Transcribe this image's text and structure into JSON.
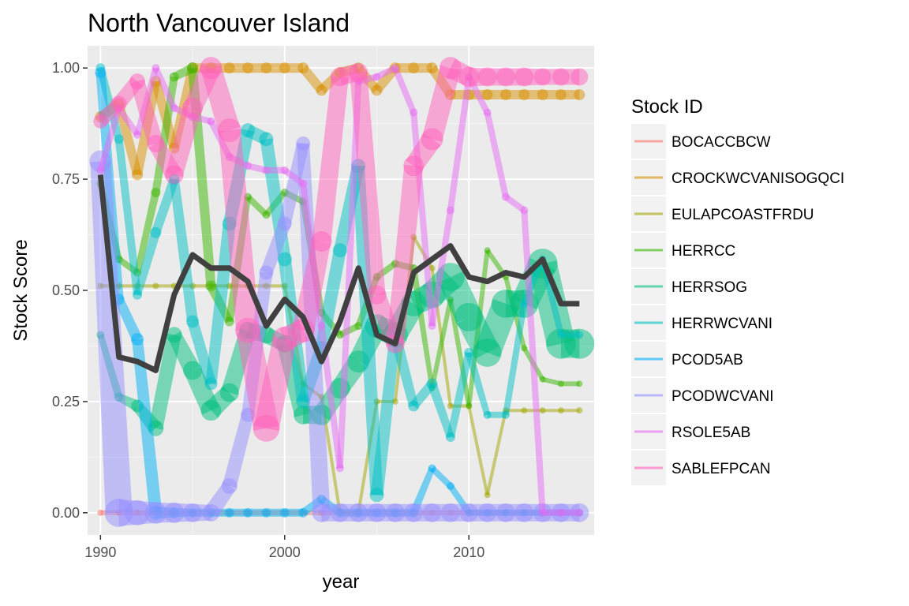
{
  "chart_data": {
    "type": "line",
    "title": "North Vancouver Island",
    "xlabel": "year",
    "ylabel": "Stock Score",
    "xlim": [
      1989.3,
      2016.8
    ],
    "ylim": [
      -0.05,
      1.05
    ],
    "x_ticks": [
      1990,
      2000,
      2010
    ],
    "x_tick_labels": [
      "1990",
      "2000",
      "2010"
    ],
    "y_ticks": [
      0,
      0.25,
      0.5,
      0.75,
      1.0
    ],
    "y_tick_labels": [
      "0.00",
      "0.25",
      "0.50",
      "0.75",
      "1.00"
    ],
    "grid": true,
    "legend_title": "Stock ID",
    "legend_position": "right",
    "series": [
      {
        "name": "BOCACCBCW",
        "color": "#F8766D",
        "thin": false,
        "x": [
          1990,
          1991,
          1992,
          1993,
          1994,
          1995,
          1996,
          1997,
          1998,
          1999,
          2000,
          2001,
          2002,
          2003,
          2004,
          2005,
          2006,
          2007,
          2008,
          2009,
          2010,
          2011,
          2012,
          2013,
          2014,
          2015,
          2016
        ],
        "y": [
          0,
          0,
          0,
          0,
          0,
          0,
          0,
          0,
          0,
          0,
          0,
          0,
          0,
          0,
          0,
          0,
          0,
          0,
          0,
          0,
          0,
          0,
          0,
          0,
          0,
          0,
          0
        ],
        "w": [
          6,
          6,
          6,
          6,
          6,
          6,
          6,
          6,
          6,
          6,
          6,
          6,
          6,
          6,
          6,
          6,
          6,
          6,
          6,
          6,
          6,
          6,
          6,
          6,
          6,
          6,
          6
        ]
      },
      {
        "name": "CROCKWCVANISOGQCI",
        "color": "#D89000",
        "thin": false,
        "x": [
          1990,
          1991,
          1992,
          1993,
          1994,
          1995,
          1996,
          1997,
          1998,
          1999,
          2000,
          2001,
          2002,
          2003,
          2004,
          2005,
          2006,
          2007,
          2008,
          2009,
          2010,
          2011,
          2012,
          2013,
          2014,
          2015,
          2016
        ],
        "y": [
          0.89,
          0.92,
          0.76,
          0.97,
          0.82,
          1.0,
          1.0,
          1.0,
          1.0,
          1.0,
          1.0,
          1.0,
          0.95,
          0.99,
          1.0,
          0.95,
          1.0,
          1.0,
          1.0,
          0.94,
          0.94,
          0.94,
          0.94,
          0.94,
          0.94,
          0.94,
          0.94
        ],
        "w": [
          12,
          12,
          12,
          12,
          12,
          12,
          12,
          12,
          12,
          12,
          12,
          12,
          12,
          12,
          12,
          12,
          12,
          12,
          12,
          12,
          12,
          12,
          12,
          12,
          12,
          12,
          12
        ]
      },
      {
        "name": "EULAPCOASTFRDU",
        "color": "#A3A500",
        "thin": true,
        "x": [
          1990,
          1991,
          1992,
          1993,
          1994,
          1995,
          1996,
          1997,
          1998,
          1999,
          2000,
          2001,
          2002,
          2003,
          2004,
          2005,
          2006,
          2007,
          2008,
          2009,
          2010,
          2011,
          2012,
          2013,
          2014,
          2015,
          2016
        ],
        "y": [
          0.51,
          0.51,
          0.51,
          0.51,
          0.51,
          0.51,
          0.51,
          0.51,
          0.51,
          0.51,
          0.51,
          0.29,
          0.26,
          0.0,
          0.0,
          0.25,
          0.25,
          0.62,
          0.55,
          0.24,
          0.24,
          0.04,
          0.23,
          0.23,
          0.23,
          0.23,
          0.23
        ],
        "w": [
          4,
          4,
          4,
          4,
          4,
          4,
          4,
          4,
          4,
          4,
          4,
          4,
          4,
          4,
          4,
          4,
          4,
          4,
          4,
          4,
          4,
          4,
          4,
          4,
          4,
          4,
          4
        ]
      },
      {
        "name": "HERRCC",
        "color": "#39B600",
        "thin": false,
        "x": [
          1990,
          1991,
          1992,
          1993,
          1994,
          1995,
          1996,
          1997,
          1998,
          1999,
          2000,
          2001,
          2002,
          2003,
          2004,
          2005,
          2006,
          2007,
          2008,
          2009,
          2010,
          2011,
          2012,
          2013,
          2014,
          2015,
          2016
        ],
        "y": [
          0.74,
          0.57,
          0.54,
          0.72,
          0.98,
          1.0,
          0.51,
          0.43,
          0.71,
          0.67,
          0.72,
          0.7,
          0.45,
          0.4,
          0.42,
          0.53,
          0.56,
          0.55,
          0.28,
          0.48,
          0.24,
          0.59,
          0.53,
          0.37,
          0.3,
          0.29,
          0.29
        ],
        "w": [
          8,
          8,
          8,
          10,
          10,
          12,
          12,
          10,
          8,
          8,
          8,
          8,
          8,
          8,
          8,
          8,
          8,
          8,
          6,
          6,
          6,
          6,
          6,
          6,
          6,
          6,
          6
        ]
      },
      {
        "name": "HERRSOG",
        "color": "#00BF7D",
        "thin": false,
        "x": [
          1990,
          1991,
          1992,
          1993,
          1994,
          1995,
          1996,
          1997,
          1998,
          1999,
          2000,
          2001,
          2002,
          2003,
          2004,
          2005,
          2006,
          2007,
          2008,
          2009,
          2010,
          2011,
          2012,
          2013,
          2014,
          2015,
          2016
        ],
        "y": [
          0.4,
          0.26,
          0.24,
          0.19,
          0.4,
          0.32,
          0.23,
          0.27,
          0.41,
          0.4,
          0.38,
          0.22,
          0.22,
          0.28,
          0.34,
          0.42,
          0.4,
          0.47,
          0.49,
          0.53,
          0.44,
          0.36,
          0.47,
          0.47,
          0.56,
          0.38,
          0.38
        ],
        "w": [
          8,
          10,
          14,
          18,
          18,
          22,
          24,
          22,
          20,
          20,
          20,
          22,
          24,
          24,
          26,
          28,
          30,
          30,
          32,
          34,
          34,
          34,
          34,
          34,
          36,
          36,
          36
        ]
      },
      {
        "name": "HERRWCVANI",
        "color": "#00BFC4",
        "thin": false,
        "x": [
          1990,
          1991,
          1992,
          1993,
          1994,
          1995,
          1996,
          1997,
          1998,
          1999,
          2000,
          2001,
          2002,
          2003,
          2004,
          2005,
          2006,
          2007,
          2008,
          2009,
          2010,
          2011,
          2012,
          2013,
          2014,
          2015,
          2016
        ],
        "y": [
          1.0,
          0.84,
          0.49,
          0.63,
          0.75,
          0.43,
          0.29,
          0.65,
          0.86,
          0.84,
          0.57,
          0.25,
          0.37,
          0.59,
          0.78,
          0.04,
          0.4,
          0.24,
          0.29,
          0.17,
          0.36,
          0.22,
          0.22,
          0.47,
          0.57,
          0.4,
          0.4
        ],
        "w": [
          10,
          10,
          10,
          12,
          12,
          14,
          14,
          16,
          16,
          16,
          16,
          16,
          16,
          16,
          16,
          16,
          14,
          12,
          12,
          10,
          10,
          8,
          8,
          8,
          8,
          8,
          8
        ]
      },
      {
        "name": "PCOD5AB",
        "color": "#00B0F6",
        "thin": false,
        "x": [
          1990,
          1991,
          1992,
          1993,
          1994,
          1995,
          1996,
          1997,
          1998,
          1999,
          2000,
          2001,
          2002,
          2003,
          2004,
          2005,
          2006,
          2007,
          2008,
          2009,
          2010,
          2011,
          2012,
          2013,
          2014,
          2015,
          2016
        ],
        "y": [
          0.99,
          0.48,
          0.39,
          0.0,
          0.0,
          0.0,
          0.0,
          0.0,
          0.0,
          0.0,
          0.0,
          0.0,
          0.03,
          0.0,
          0.0,
          0.0,
          0.0,
          0.0,
          0.1,
          0.06,
          0.0,
          0.0,
          0.0,
          0.0,
          0.0,
          0.0,
          0.0
        ],
        "w": [
          12,
          12,
          14,
          16,
          12,
          10,
          10,
          10,
          10,
          10,
          10,
          10,
          10,
          10,
          10,
          10,
          10,
          10,
          8,
          8,
          8,
          8,
          8,
          8,
          8,
          8,
          8
        ]
      },
      {
        "name": "PCODWCVANI",
        "color": "#9590FF",
        "thin": false,
        "x": [
          1990,
          1991,
          1992,
          1993,
          1994,
          1995,
          1996,
          1997,
          1998,
          1999,
          2000,
          2001,
          2002,
          2003,
          2004,
          2005,
          2006,
          2007,
          2008,
          2009,
          2010,
          2011,
          2012,
          2013,
          2014,
          2015,
          2016
        ],
        "y": [
          0.79,
          0.0,
          0.0,
          0.0,
          0.0,
          0.0,
          0.0,
          0.06,
          0.22,
          0.54,
          0.65,
          0.83,
          0.0,
          0.0,
          0.0,
          0.0,
          0.0,
          0.0,
          0.0,
          0.0,
          0.0,
          0.0,
          0.0,
          0.0,
          0.0,
          0.0,
          0.0
        ],
        "w": [
          26,
          34,
          30,
          26,
          24,
          22,
          20,
          18,
          16,
          16,
          16,
          16,
          22,
          22,
          22,
          22,
          22,
          22,
          22,
          22,
          22,
          22,
          22,
          22,
          22,
          22,
          22
        ]
      },
      {
        "name": "RSOLE5AB",
        "color": "#E76BF3",
        "thin": false,
        "x": [
          1990,
          1991,
          1992,
          1993,
          1994,
          1995,
          1996,
          1997,
          1998,
          1999,
          2000,
          2001,
          2002,
          2003,
          2004,
          2005,
          2006,
          2007,
          2008,
          2009,
          2010,
          2011,
          2012,
          2013,
          2014,
          2015,
          2016
        ],
        "y": [
          0.77,
          0.91,
          0.85,
          1.0,
          0.91,
          0.89,
          0.88,
          0.8,
          0.78,
          0.77,
          0.77,
          0.74,
          0.42,
          0.1,
          0.97,
          0.98,
          1.0,
          0.9,
          0.42,
          0.68,
          0.98,
          0.9,
          0.71,
          0.68,
          0.0,
          0.0,
          0.0
        ],
        "w": [
          8,
          8,
          8,
          8,
          8,
          8,
          8,
          8,
          8,
          8,
          8,
          8,
          8,
          8,
          8,
          8,
          8,
          8,
          8,
          8,
          8,
          8,
          8,
          8,
          8,
          8,
          8
        ]
      },
      {
        "name": "SABLEFPCAN",
        "color": "#FF62BC",
        "thin": false,
        "x": [
          1990,
          1991,
          1992,
          1993,
          1994,
          1995,
          1996,
          1997,
          1998,
          1999,
          2000,
          2001,
          2002,
          2003,
          2004,
          2005,
          2006,
          2007,
          2008,
          2009,
          2010,
          2011,
          2012,
          2013,
          2014,
          2015,
          2016
        ],
        "y": [
          0.88,
          0.92,
          0.97,
          0.83,
          0.76,
          0.91,
          1.0,
          0.86,
          0.41,
          0.19,
          0.39,
          0.41,
          0.61,
          0.98,
          0.99,
          0.49,
          0.38,
          0.78,
          0.84,
          1.0,
          0.98,
          0.98,
          0.98,
          0.98,
          0.98,
          0.98,
          0.98
        ],
        "w": [
          16,
          18,
          18,
          20,
          22,
          24,
          26,
          28,
          30,
          32,
          30,
          28,
          24,
          22,
          22,
          22,
          22,
          24,
          26,
          26,
          24,
          22,
          22,
          22,
          20,
          20,
          20
        ]
      }
    ],
    "mean_line": {
      "color": "#404040",
      "x": [
        1990,
        1991,
        1992,
        1993,
        1994,
        1995,
        1996,
        1997,
        1998,
        1999,
        2000,
        2001,
        2002,
        2003,
        2004,
        2005,
        2006,
        2007,
        2008,
        2009,
        2010,
        2011,
        2012,
        2013,
        2014,
        2015,
        2016
      ],
      "y": [
        0.76,
        0.35,
        0.34,
        0.32,
        0.49,
        0.58,
        0.55,
        0.55,
        0.52,
        0.42,
        0.48,
        0.44,
        0.34,
        0.43,
        0.55,
        0.4,
        0.38,
        0.54,
        0.57,
        0.6,
        0.53,
        0.52,
        0.54,
        0.53,
        0.57,
        0.47,
        0.47
      ]
    }
  }
}
